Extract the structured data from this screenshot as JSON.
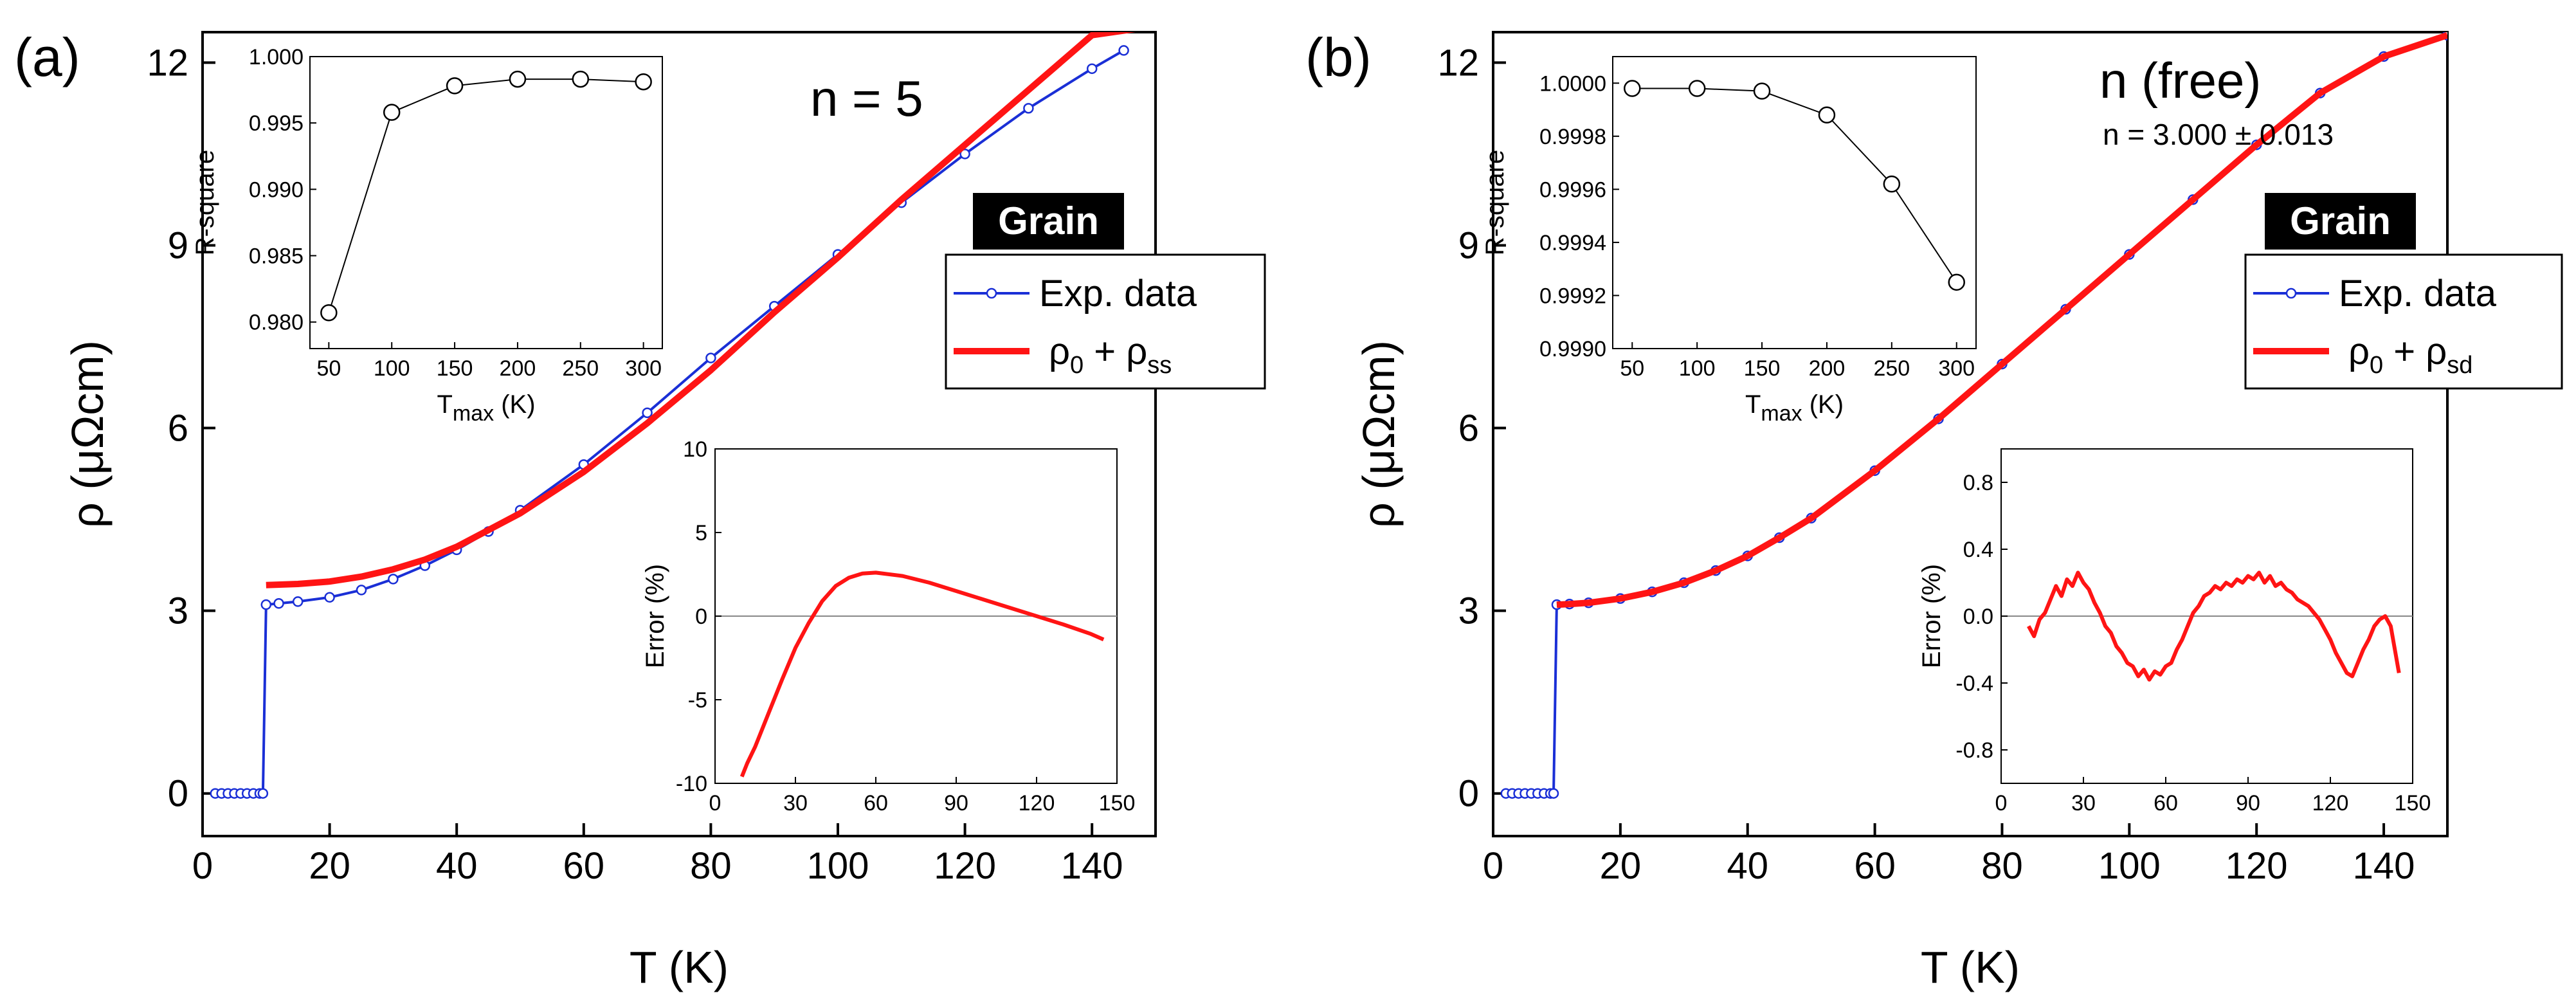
{
  "colors": {
    "exp": "#1a2fd6",
    "fit": "#ff1414",
    "axis": "#000000",
    "zero": "#888888",
    "label_bg": "#000000"
  },
  "chart_data": [
    {
      "type": "line",
      "panel_label": "(a)",
      "xlabel": "T (K)",
      "ylabel": "ρ (μΩcm)",
      "xlim": [
        0,
        150
      ],
      "ylim": [
        -0.7,
        12.5
      ],
      "xticks": [
        0,
        20,
        40,
        60,
        80,
        100,
        120,
        140
      ],
      "yticks": [
        0,
        3,
        6,
        9,
        12
      ],
      "annotation": "n = 5",
      "annotation_sub": "",
      "tag": "Grain",
      "legend": [
        {
          "text": "Exp. data",
          "base": "Exp. data",
          "sub": "",
          "tail": ""
        },
        {
          "text": "ρ0 + ρss",
          "base": "ρ",
          "sub": "0",
          "tail": " + ρ",
          "tail_sub": "ss"
        }
      ],
      "series": [
        {
          "name": "Exp. data",
          "kind": "markers-line",
          "x": [
            2,
            3,
            4,
            5,
            6,
            7,
            8,
            9,
            9.5,
            10,
            12,
            15,
            20,
            25,
            30,
            35,
            40,
            45,
            50,
            60,
            70,
            80,
            90,
            100,
            110,
            120,
            130,
            140,
            145
          ],
          "y": [
            0,
            0,
            0,
            0,
            0,
            0,
            0,
            0,
            0,
            3.1,
            3.12,
            3.15,
            3.22,
            3.34,
            3.52,
            3.74,
            4.0,
            4.3,
            4.65,
            5.4,
            6.25,
            7.15,
            8.0,
            8.85,
            9.7,
            10.5,
            11.25,
            11.9,
            12.2
          ]
        },
        {
          "name": "ρ0 + ρss",
          "kind": "line",
          "x": [
            10,
            15,
            20,
            25,
            30,
            35,
            40,
            50,
            60,
            70,
            80,
            90,
            100,
            110,
            120,
            130,
            140,
            150
          ],
          "y": [
            3.42,
            3.44,
            3.48,
            3.56,
            3.68,
            3.84,
            4.05,
            4.6,
            5.28,
            6.08,
            6.95,
            7.9,
            8.8,
            9.75,
            10.65,
            11.55,
            12.45,
            12.6
          ]
        }
      ],
      "inset_top": {
        "xlabel": "T",
        "xlabel_sub": "max",
        "xlabel_tail": " (K)",
        "ylabel": "R-square",
        "xlim": [
          35,
          315
        ],
        "ylim": [
          0.978,
          1.0
        ],
        "xticks": [
          50,
          100,
          150,
          200,
          250,
          300
        ],
        "yticks": [
          0.98,
          0.985,
          0.99,
          0.995,
          1.0
        ],
        "ytick_labels": [
          "0.980",
          "0.985",
          "0.990",
          "0.995",
          "1.000"
        ],
        "x": [
          50,
          100,
          150,
          200,
          250,
          300
        ],
        "y": [
          0.9807,
          0.9958,
          0.9978,
          0.9983,
          0.9983,
          0.9981
        ]
      },
      "inset_error": {
        "ylabel": "Error (%)",
        "xlim": [
          0,
          150
        ],
        "ylim": [
          -10,
          10
        ],
        "xticks": [
          0,
          30,
          60,
          90,
          120,
          150
        ],
        "yticks": [
          -10,
          -5,
          0,
          5,
          10
        ],
        "ytick_labels": [
          "-10",
          "-5",
          "0",
          "5",
          "10"
        ],
        "x": [
          10,
          12,
          15,
          20,
          25,
          30,
          35,
          40,
          45,
          50,
          55,
          60,
          70,
          80,
          90,
          100,
          110,
          120,
          130,
          140,
          145
        ],
        "y": [
          -9.6,
          -8.8,
          -7.8,
          -5.8,
          -3.8,
          -1.9,
          -0.4,
          0.9,
          1.8,
          2.3,
          2.55,
          2.6,
          2.4,
          2.0,
          1.5,
          1.0,
          0.5,
          0.0,
          -0.5,
          -1.05,
          -1.4
        ]
      }
    },
    {
      "type": "line",
      "panel_label": "(b)",
      "xlabel": "T (K)",
      "ylabel": "ρ (μΩcm)",
      "xlim": [
        0,
        150
      ],
      "ylim": [
        -0.7,
        12.5
      ],
      "xticks": [
        0,
        20,
        40,
        60,
        80,
        100,
        120,
        140
      ],
      "yticks": [
        0,
        3,
        6,
        9,
        12
      ],
      "annotation": "n (free)",
      "annotation_sub": "n = 3.000 ± 0.013",
      "tag": "Grain",
      "legend": [
        {
          "text": "Exp. data",
          "base": "Exp. data",
          "sub": "",
          "tail": ""
        },
        {
          "text": "ρ0 + ρsd",
          "base": "ρ",
          "sub": "0",
          "tail": " + ρ",
          "tail_sub": "sd"
        }
      ],
      "series": [
        {
          "name": "Exp. data",
          "kind": "markers-line",
          "x": [
            2,
            3,
            4,
            5,
            6,
            7,
            8,
            9,
            9.5,
            10,
            12,
            15,
            20,
            25,
            30,
            35,
            40,
            45,
            50,
            60,
            70,
            80,
            90,
            100,
            110,
            120,
            130,
            140,
            150
          ],
          "y": [
            0,
            0,
            0,
            0,
            0,
            0,
            0,
            0,
            0,
            3.1,
            3.11,
            3.13,
            3.2,
            3.31,
            3.46,
            3.66,
            3.9,
            4.2,
            4.52,
            5.3,
            6.15,
            7.05,
            7.95,
            8.85,
            9.75,
            10.65,
            11.5,
            12.1,
            12.45
          ]
        },
        {
          "name": "ρ0 + ρsd",
          "kind": "line",
          "x": [
            10,
            12,
            15,
            20,
            25,
            30,
            35,
            40,
            45,
            50,
            60,
            70,
            80,
            90,
            100,
            110,
            120,
            130,
            140,
            150
          ],
          "y": [
            3.1,
            3.11,
            3.13,
            3.2,
            3.31,
            3.46,
            3.66,
            3.9,
            4.2,
            4.52,
            5.3,
            6.15,
            7.05,
            7.95,
            8.85,
            9.75,
            10.65,
            11.5,
            12.1,
            12.45
          ]
        }
      ],
      "inset_top": {
        "xlabel": "T",
        "xlabel_sub": "max",
        "xlabel_tail": " (K)",
        "ylabel": "R-square",
        "xlim": [
          35,
          315
        ],
        "ylim": [
          0.999,
          1.0001
        ],
        "xticks": [
          50,
          100,
          150,
          200,
          250,
          300
        ],
        "yticks": [
          0.999,
          0.9992,
          0.9994,
          0.9996,
          0.9998,
          1.0
        ],
        "ytick_labels": [
          "0.9990",
          "0.9992",
          "0.9994",
          "0.9996",
          "0.9998",
          "1.0000"
        ],
        "x": [
          50,
          100,
          150,
          200,
          250,
          300
        ],
        "y": [
          0.99998,
          0.99998,
          0.99997,
          0.99988,
          0.99962,
          0.99925
        ]
      },
      "inset_error": {
        "ylabel": "Error (%)",
        "xlim": [
          0,
          150
        ],
        "ylim": [
          -1.0,
          1.0
        ],
        "xticks": [
          0,
          30,
          60,
          90,
          120,
          150
        ],
        "yticks": [
          -0.8,
          -0.4,
          0.0,
          0.4,
          0.8
        ],
        "ytick_labels": [
          "-0.8",
          "-0.4",
          "0.0",
          "0.4",
          "0.8"
        ],
        "x": [
          10,
          12,
          14,
          16,
          18,
          20,
          22,
          24,
          26,
          28,
          30,
          32,
          34,
          36,
          38,
          40,
          42,
          44,
          46,
          48,
          50,
          52,
          54,
          56,
          58,
          60,
          62,
          64,
          66,
          68,
          70,
          72,
          74,
          76,
          78,
          80,
          82,
          84,
          86,
          88,
          90,
          92,
          94,
          96,
          98,
          100,
          102,
          104,
          106,
          108,
          110,
          112,
          114,
          116,
          118,
          120,
          122,
          124,
          126,
          128,
          130,
          132,
          134,
          136,
          138,
          140,
          142,
          145
        ],
        "y": [
          -0.06,
          -0.12,
          -0.02,
          0.02,
          0.1,
          0.18,
          0.12,
          0.22,
          0.18,
          0.26,
          0.2,
          0.16,
          0.08,
          0.02,
          -0.06,
          -0.1,
          -0.18,
          -0.22,
          -0.28,
          -0.3,
          -0.36,
          -0.32,
          -0.38,
          -0.33,
          -0.35,
          -0.3,
          -0.28,
          -0.2,
          -0.14,
          -0.06,
          0.02,
          0.06,
          0.12,
          0.14,
          0.18,
          0.16,
          0.2,
          0.18,
          0.22,
          0.2,
          0.24,
          0.22,
          0.26,
          0.2,
          0.24,
          0.18,
          0.2,
          0.16,
          0.14,
          0.1,
          0.08,
          0.06,
          0.02,
          -0.02,
          -0.08,
          -0.14,
          -0.22,
          -0.28,
          -0.34,
          -0.36,
          -0.28,
          -0.2,
          -0.14,
          -0.06,
          -0.02,
          0.0,
          -0.06,
          -0.34
        ]
      }
    }
  ]
}
